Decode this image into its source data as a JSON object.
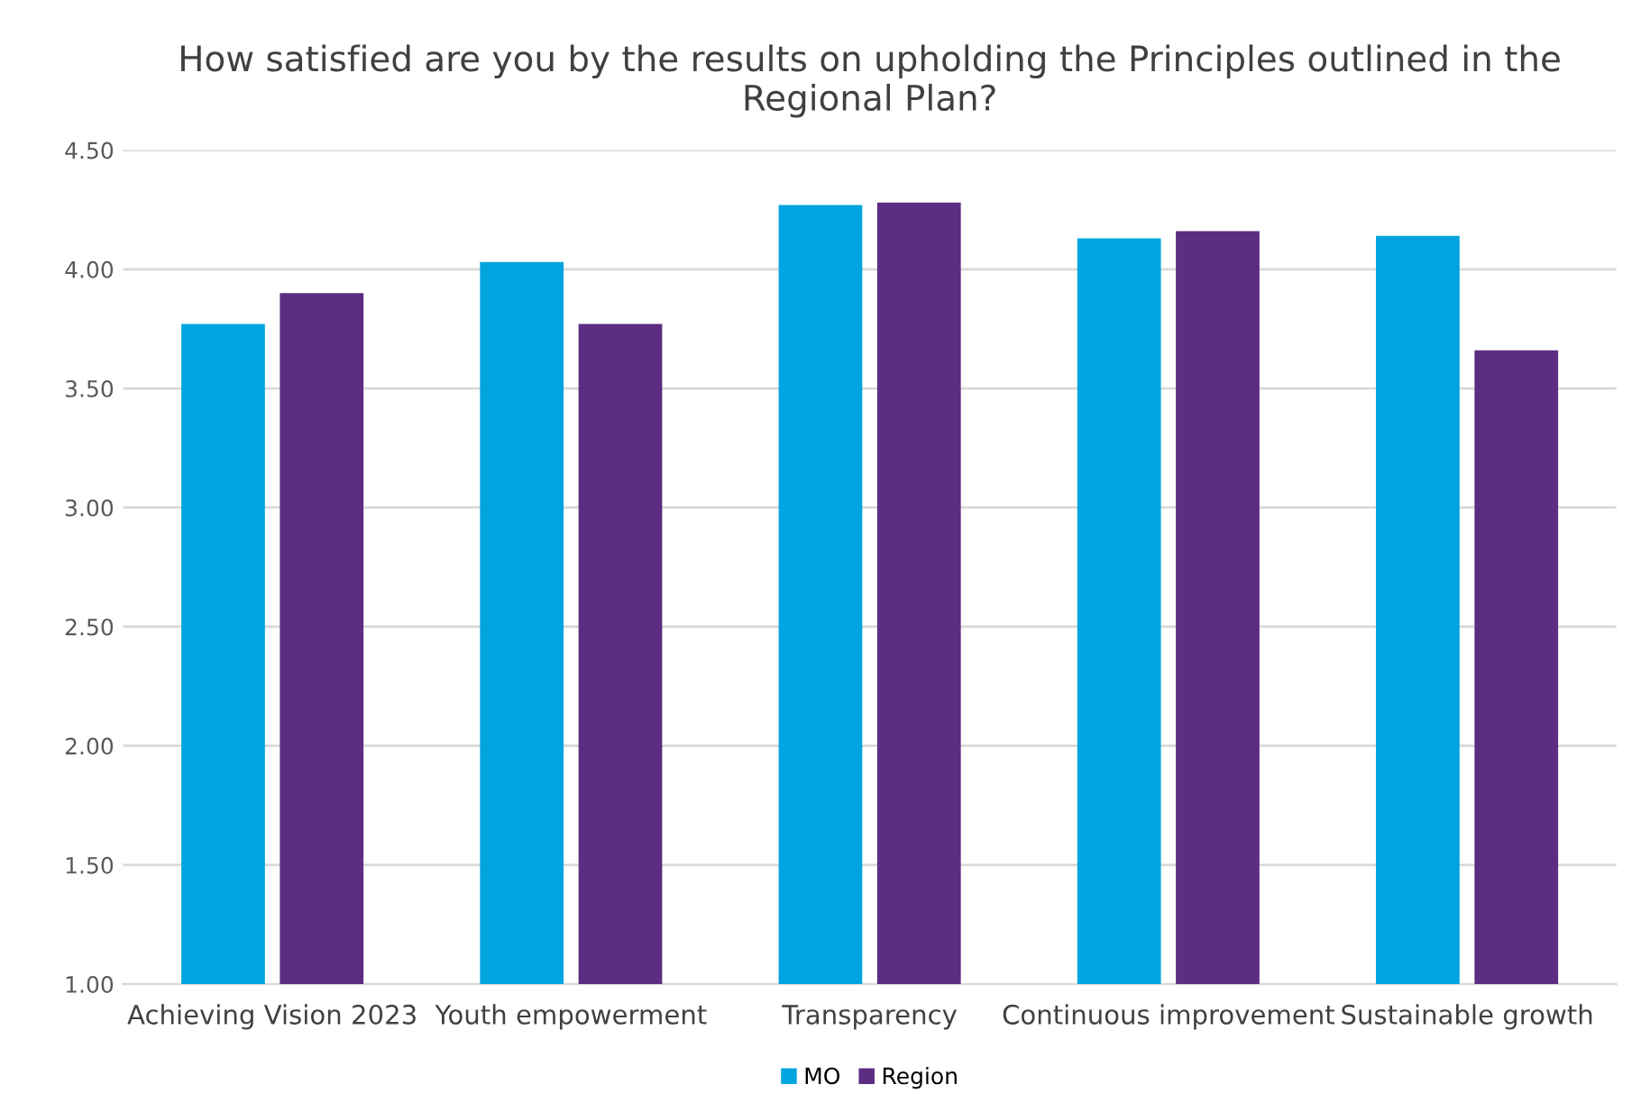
{
  "chart_data": {
    "type": "bar",
    "title": "How satisfied are you by the results on upholding the Principles outlined in the Regional Plan?",
    "categories": [
      "Achieving Vision 2023",
      "Youth empowerment",
      "Transparency",
      "Continuous improvement",
      "Sustainable growth"
    ],
    "series": [
      {
        "name": "MO",
        "color": "#00a5e0",
        "values": [
          3.77,
          4.03,
          4.27,
          4.13,
          4.14
        ]
      },
      {
        "name": "Region",
        "color": "#5c2d82",
        "values": [
          3.9,
          3.77,
          4.28,
          4.16,
          3.66
        ]
      }
    ],
    "ylim": [
      1.0,
      4.5
    ],
    "yticks": [
      {
        "value": 1.0,
        "label": "1.00"
      },
      {
        "value": 1.5,
        "label": "1.50"
      },
      {
        "value": 2.0,
        "label": "2.00"
      },
      {
        "value": 2.5,
        "label": "2.50"
      },
      {
        "value": 3.0,
        "label": "3.00"
      },
      {
        "value": 3.5,
        "label": "3.50"
      },
      {
        "value": 4.0,
        "label": "4.00"
      },
      {
        "value": 4.5,
        "label": "4.50"
      }
    ],
    "grid": "y",
    "legend": "bottom"
  }
}
